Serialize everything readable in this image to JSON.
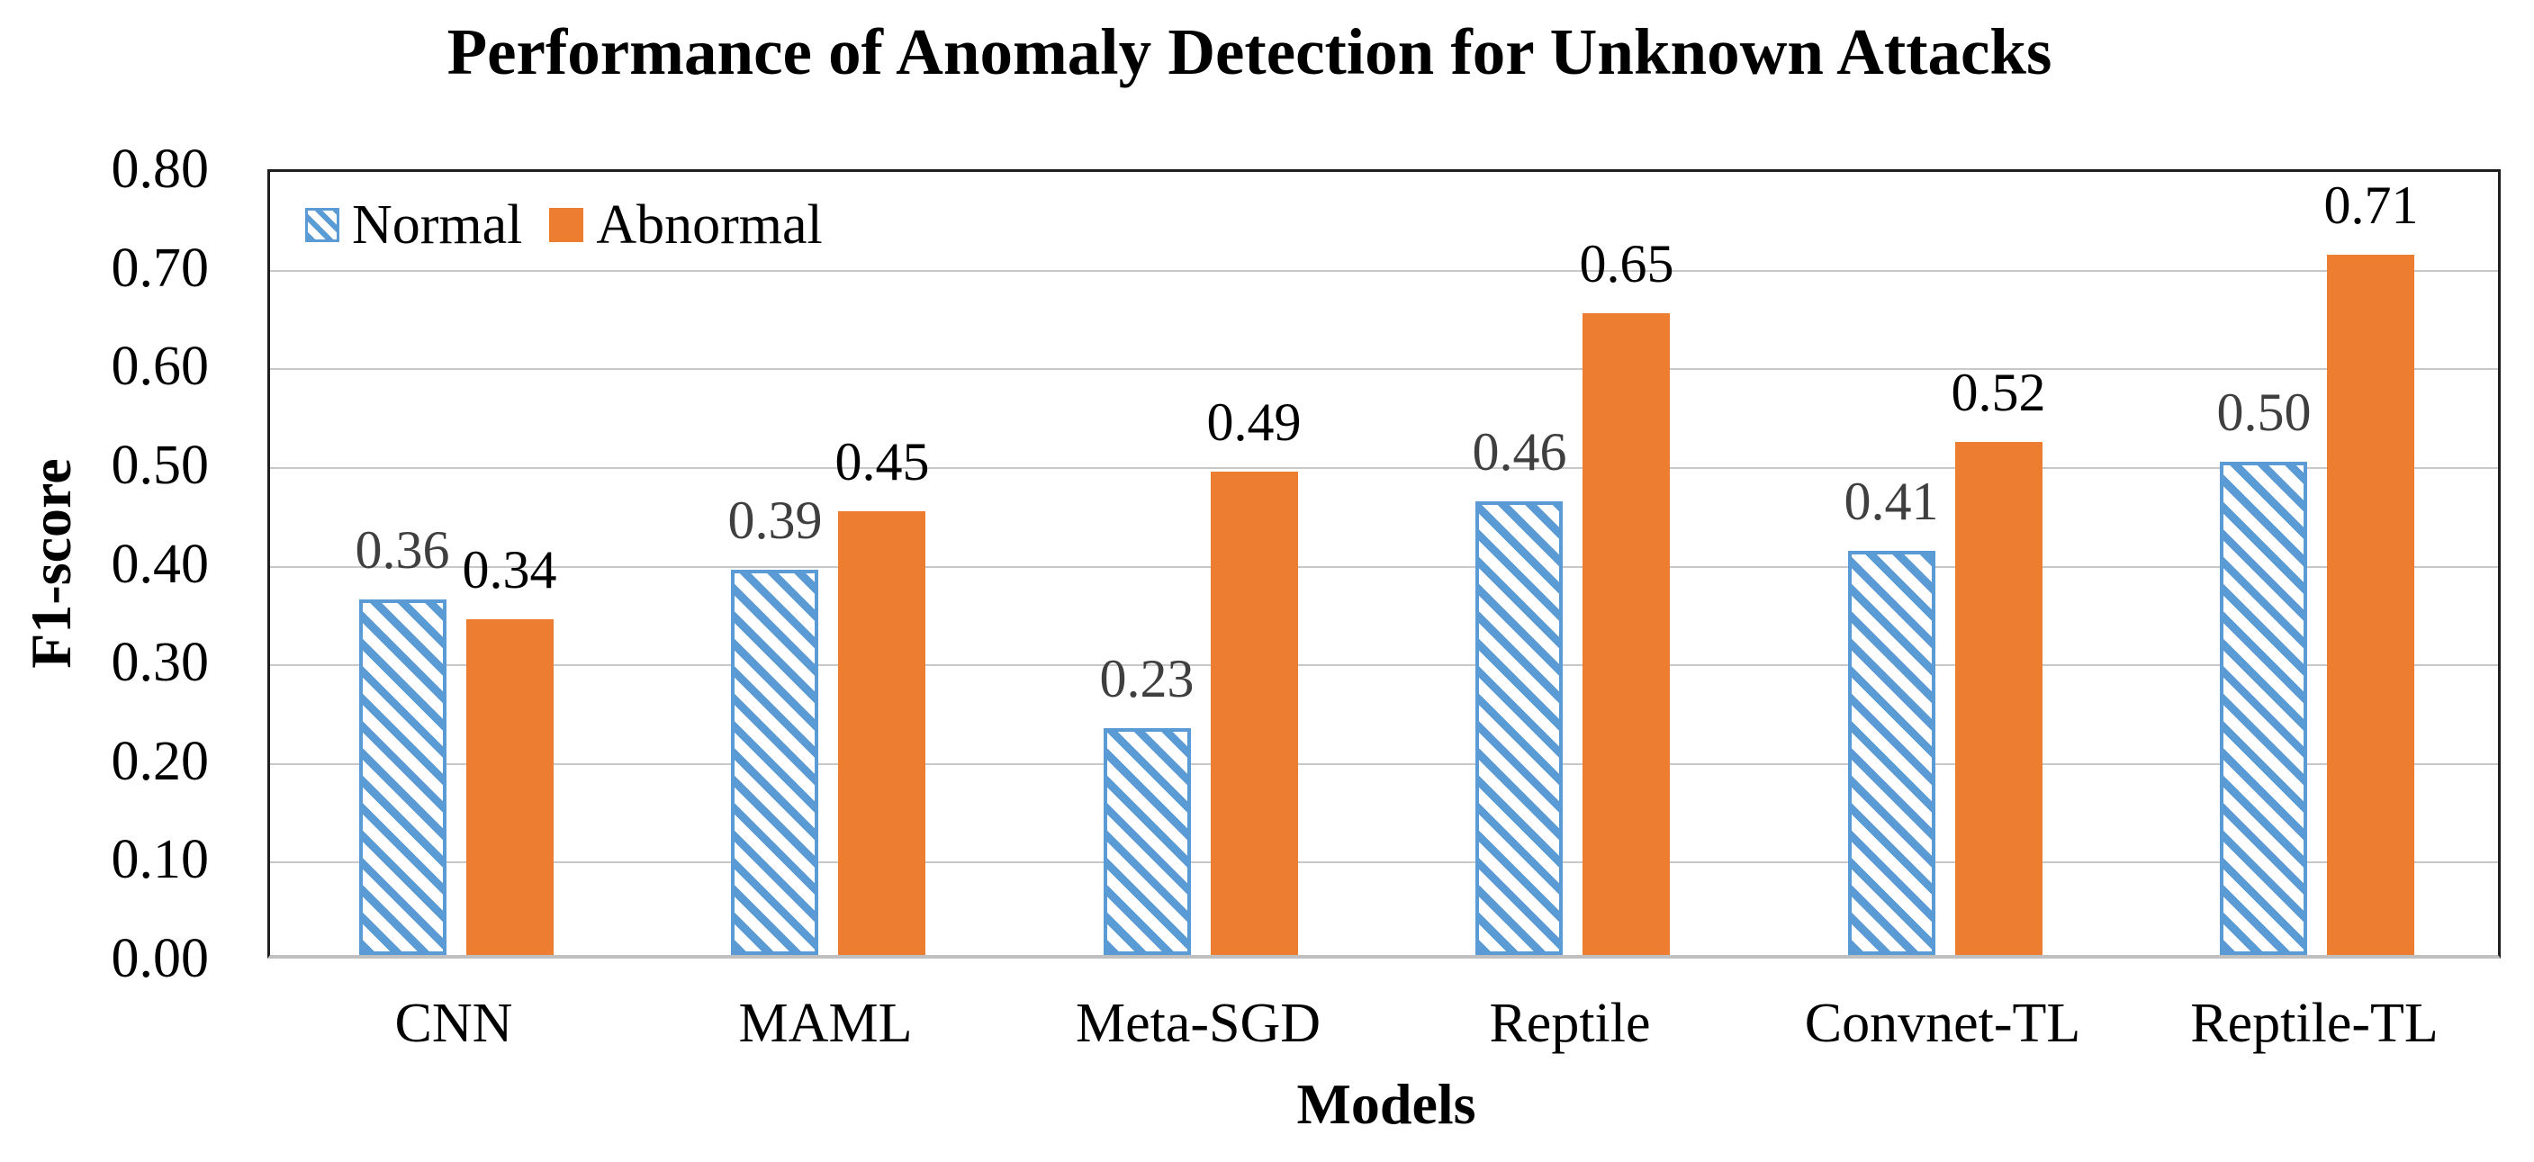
{
  "chart_data": {
    "type": "bar",
    "title": "Performance of Anomaly Detection for Unknown Attacks",
    "xlabel": "Models",
    "ylabel": "F1-score",
    "categories": [
      "CNN",
      "MAML",
      "Meta-SGD",
      "Reptile",
      "Convnet-TL",
      "Reptile-TL"
    ],
    "series": [
      {
        "name": "Normal",
        "values": [
          0.36,
          0.39,
          0.23,
          0.46,
          0.41,
          0.5
        ],
        "color": "#5B9BD5",
        "fill": "hatched",
        "value_label_color": "#3F3F3F"
      },
      {
        "name": "Abnormal",
        "values": [
          0.34,
          0.45,
          0.49,
          0.65,
          0.52,
          0.71
        ],
        "color": "#ED7D31",
        "fill": "solid",
        "value_label_color": "#000000"
      }
    ],
    "ylim": [
      0.0,
      0.8
    ],
    "ytick_step": 0.1,
    "ytick_labels": [
      "0.00",
      "0.10",
      "0.20",
      "0.30",
      "0.40",
      "0.50",
      "0.60",
      "0.70",
      "0.80"
    ],
    "value_label_decimals": 2,
    "grid": true,
    "legend": [
      "Normal",
      "Abnormal"
    ],
    "legend_position": "top-left-inside",
    "gridline_color": "#C8C8C8",
    "plot_border_color": "#1F1F1F",
    "baseline_color": "#C0C0C0",
    "background": "#FFFFFF"
  }
}
